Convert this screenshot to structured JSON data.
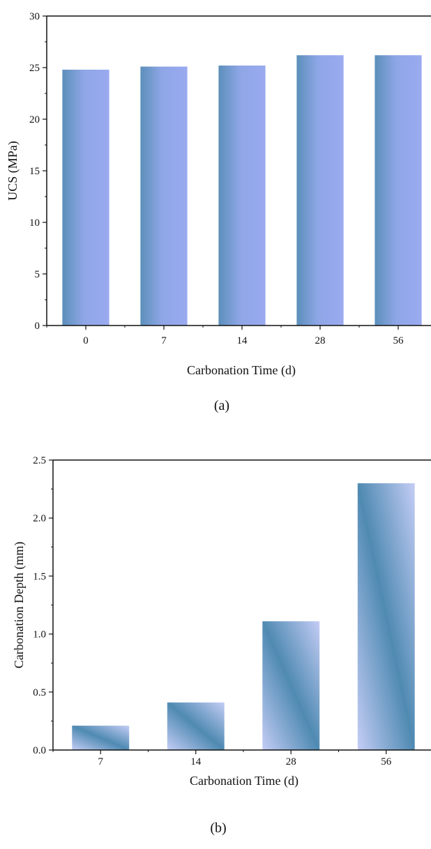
{
  "chart_data": [
    {
      "type": "bar",
      "panel_label": "(a)",
      "categories": [
        "0",
        "7",
        "14",
        "28",
        "56"
      ],
      "values": [
        24.8,
        25.1,
        25.2,
        26.2,
        26.2
      ],
      "xlabel": "Carbonation Time (d)",
      "ylabel": "UCS (MPa)",
      "ylim": [
        0,
        30
      ],
      "yticks": [
        "0",
        "5",
        "10",
        "15",
        "20",
        "25",
        "30"
      ],
      "grid": false,
      "colors": {
        "bar_main": "#9aaaf0",
        "bar_edge": "#5a8fb8"
      }
    },
    {
      "type": "bar",
      "panel_label": "(b)",
      "categories": [
        "7",
        "14",
        "28",
        "56"
      ],
      "values": [
        0.21,
        0.41,
        1.11,
        2.3
      ],
      "xlabel": "Carbonation Time (d)",
      "ylabel": "Carbonation Depth (mm)",
      "ylim": [
        0,
        2.5
      ],
      "yticks": [
        "0.0",
        "0.5",
        "1.0",
        "1.5",
        "2.0",
        "2.5"
      ],
      "grid": false,
      "colors": {
        "bar_light": "#c4cdf5",
        "bar_dark": "#4f8ab2"
      }
    }
  ]
}
